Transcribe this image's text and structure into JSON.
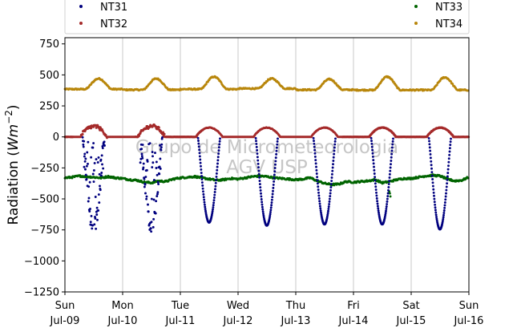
{
  "watermark": {
    "line1": "Grupo de Micrometeorologia",
    "line2": "AGV USP"
  },
  "colors": {
    "NT31": "#00007f",
    "NT32": "#a52a2a",
    "NT33": "#006400",
    "NT34": "#b8860b",
    "grid": "#c8c8c8"
  },
  "chart_data": {
    "type": "scatter",
    "title": "",
    "xlabel": "",
    "ylabel": "Radiation (Wm^-2)",
    "ylabel_parts": {
      "main": "Radiation (",
      "unit_base": "Wm",
      "unit_exp": "−2",
      "close": ")"
    },
    "xlim": [
      "2014-07-09 00:00",
      "2014-07-16 00:00"
    ],
    "ylim": [
      -1250,
      800
    ],
    "yticks": [
      -1250,
      -1000,
      -750,
      -500,
      -250,
      0,
      250,
      500,
      750
    ],
    "ytick_labels": [
      "−1250",
      "−1000",
      "−750",
      "−500",
      "−250",
      "0",
      "250",
      "500",
      "750"
    ],
    "xticks": [
      {
        "day": 0,
        "line1": "Sun",
        "line2": "Jul-09"
      },
      {
        "day": 1,
        "line1": "Mon",
        "line2": "Jul-10"
      },
      {
        "day": 2,
        "line1": "Tue",
        "line2": "Jul-11"
      },
      {
        "day": 3,
        "line1": "Wed",
        "line2": "Jul-12"
      },
      {
        "day": 4,
        "line1": "Thu",
        "line2": "Jul-13"
      },
      {
        "day": 5,
        "line1": "Fri",
        "line2": "Jul-14"
      },
      {
        "day": 6,
        "line1": "Sat",
        "line2": "Jul-15"
      },
      {
        "day": 7,
        "line1": "Sun",
        "line2": "Jul-16"
      }
    ],
    "grid": true,
    "legend": {
      "placement": "top, above plot",
      "columns": 2
    },
    "series": [
      {
        "name": "NT31",
        "daily_min": [
          -780,
          -770,
          -690,
          -715,
          -705,
          -705,
          -745
        ],
        "daily_peak": [
          -760,
          -740,
          -690,
          -715,
          -705,
          -705,
          -745
        ],
        "cloudy_days": [
          true,
          true,
          false,
          false,
          false,
          false,
          false
        ],
        "daylight_hours": [
          7.3,
          16.6
        ]
      },
      {
        "name": "NT32",
        "daily_max": [
          85,
          88,
          75,
          75,
          75,
          75,
          75
        ],
        "night_value": 0,
        "daylight_hours": [
          6.5,
          17.5
        ]
      },
      {
        "name": "NT33",
        "daily_points": [
          {
            "day": 0,
            "values": [
              -330,
              -325,
              -315,
              -320,
              -325,
              -330,
              -320,
              -330
            ]
          },
          {
            "day": 1,
            "values": [
              -335,
              -345,
              -350,
              -365,
              -370,
              -355,
              -360,
              -340
            ]
          },
          {
            "day": 2,
            "values": [
              -330,
              -325,
              -320,
              -330,
              -340,
              -350,
              -345,
              -335
            ]
          },
          {
            "day": 3,
            "values": [
              -340,
              -330,
              -320,
              -315,
              -320,
              -330,
              -335,
              -340
            ]
          },
          {
            "day": 4,
            "values": [
              -345,
              -340,
              -330,
              -355,
              -375,
              -385,
              -380,
              -360
            ]
          },
          {
            "day": 5,
            "values": [
              -365,
              -360,
              -355,
              -345,
              -370,
              -360,
              -345,
              -335
            ]
          },
          {
            "day": 6,
            "values": [
              -335,
              -325,
              -315,
              -310,
              -315,
              -340,
              -355,
              -350
            ]
          }
        ],
        "end_value": -325
      },
      {
        "name": "NT34",
        "base_values": [
          385,
          380,
          385,
          390,
          380,
          378,
          378
        ],
        "daily_max": [
          470,
          470,
          485,
          470,
          465,
          485,
          480
        ],
        "peak_hour": 14
      }
    ]
  }
}
